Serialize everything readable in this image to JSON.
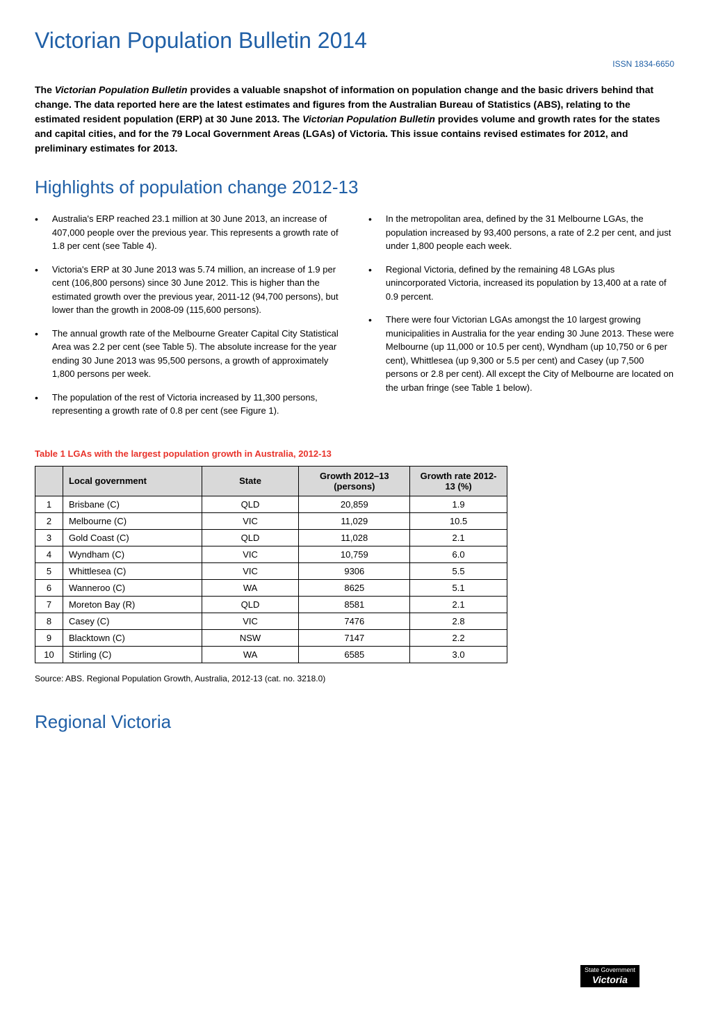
{
  "header": {
    "title": "Victorian Population Bulletin 2014",
    "issn": "ISSN 1834-6650"
  },
  "intro": {
    "text_parts": [
      "The ",
      "Victorian Population Bulletin",
      " provides a valuable snapshot of information on population change and the basic drivers behind that change. The data reported here are the latest estimates and figures from the Australian Bureau of Statistics (ABS), relating to the estimated resident population (ERP) at 30 June 2013. The ",
      "Victorian Population Bulletin",
      " provides volume and growth rates for the states and capital cities, and for the 79 Local Government Areas (LGAs) of Victoria. This issue contains revised estimates for 2012, and preliminary estimates for 2013."
    ]
  },
  "highlights": {
    "title": "Highlights of population change 2012-13",
    "left_column": [
      "Australia's ERP reached 23.1 million at 30 June 2013, an increase of 407,000 people over the previous year. This represents a growth rate of 1.8 per cent (see Table 4).",
      "Victoria's ERP at 30 June 2013 was 5.74 million, an increase of 1.9 per cent (106,800 persons) since 30 June 2012. This is higher than the estimated growth over the previous year, 2011-12 (94,700 persons), but lower than the growth in 2008-09 (115,600 persons).",
      "The annual growth rate of the Melbourne Greater Capital City Statistical Area was 2.2 per cent (see Table 5). The absolute increase for the year ending 30 June 2013 was 95,500 persons, a growth of approximately 1,800 persons per week.",
      "The population of the rest of Victoria increased by 11,300 persons, representing a growth rate of 0.8 per cent (see Figure 1)."
    ],
    "right_column": [
      "In the metropolitan area, defined by the 31 Melbourne LGAs, the population increased by 93,400 persons, a rate of 2.2 per cent, and just under 1,800 people each week.",
      "Regional Victoria, defined by the remaining 48 LGAs plus unincorporated Victoria, increased its population by 13,400 at a rate of 0.9 percent.",
      "There were four Victorian LGAs amongst the 10 largest growing municipalities in Australia for the year ending 30 June 2013. These were Melbourne (up 11,000 or 10.5 per cent), Wyndham (up 10,750 or 6 per cent), Whittlesea (up 9,300 or 5.5 per cent) and Casey (up 7,500 persons or 2.8 per cent). All except the City of Melbourne are located on the urban fringe (see Table 1 below)."
    ]
  },
  "table": {
    "title": "Table 1 LGAs with the largest population growth in Australia, 2012-13",
    "columns": [
      "",
      "Local government",
      "State",
      "Growth 2012–13 (persons)",
      "Growth rate 2012-13 (%)"
    ],
    "rows": [
      [
        "1",
        "Brisbane (C)",
        "QLD",
        "20,859",
        "1.9"
      ],
      [
        "2",
        "Melbourne (C)",
        "VIC",
        "11,029",
        "10.5"
      ],
      [
        "3",
        "Gold Coast (C)",
        "QLD",
        "11,028",
        "2.1"
      ],
      [
        "4",
        "Wyndham (C)",
        "VIC",
        "10,759",
        "6.0"
      ],
      [
        "5",
        "Whittlesea (C)",
        "VIC",
        "9306",
        "5.5"
      ],
      [
        "6",
        "Wanneroo (C)",
        "WA",
        "8625",
        "5.1"
      ],
      [
        "7",
        "Moreton Bay (R)",
        "QLD",
        "8581",
        "2.1"
      ],
      [
        "8",
        "Casey (C)",
        "VIC",
        "7476",
        "2.8"
      ],
      [
        "9",
        "Blacktown (C)",
        "NSW",
        "7147",
        "2.2"
      ],
      [
        "10",
        "Stirling (C)",
        "WA",
        "6585",
        "3.0"
      ]
    ],
    "styling": {
      "header_bg": "#d9d9d9",
      "border_color": "#000000",
      "title_color": "#e8332b",
      "font_size": 13
    }
  },
  "source": {
    "text": "Source: ABS. Regional Population Growth, Australia, 2012-13 (cat. no. 3218.0)"
  },
  "regional": {
    "title": "Regional Victoria"
  },
  "footer": {
    "logo_top": "State Government",
    "logo_bottom": "Victoria"
  },
  "colors": {
    "title_blue": "#1f5fa6",
    "table_title_red": "#e8332b",
    "text_black": "#000000",
    "table_header_bg": "#d9d9d9",
    "background": "#ffffff"
  },
  "typography": {
    "main_title_size": 32,
    "section_title_size": 26,
    "body_size": 13,
    "intro_size": 14,
    "table_title_size": 13,
    "source_size": 12,
    "issn_size": 12
  }
}
